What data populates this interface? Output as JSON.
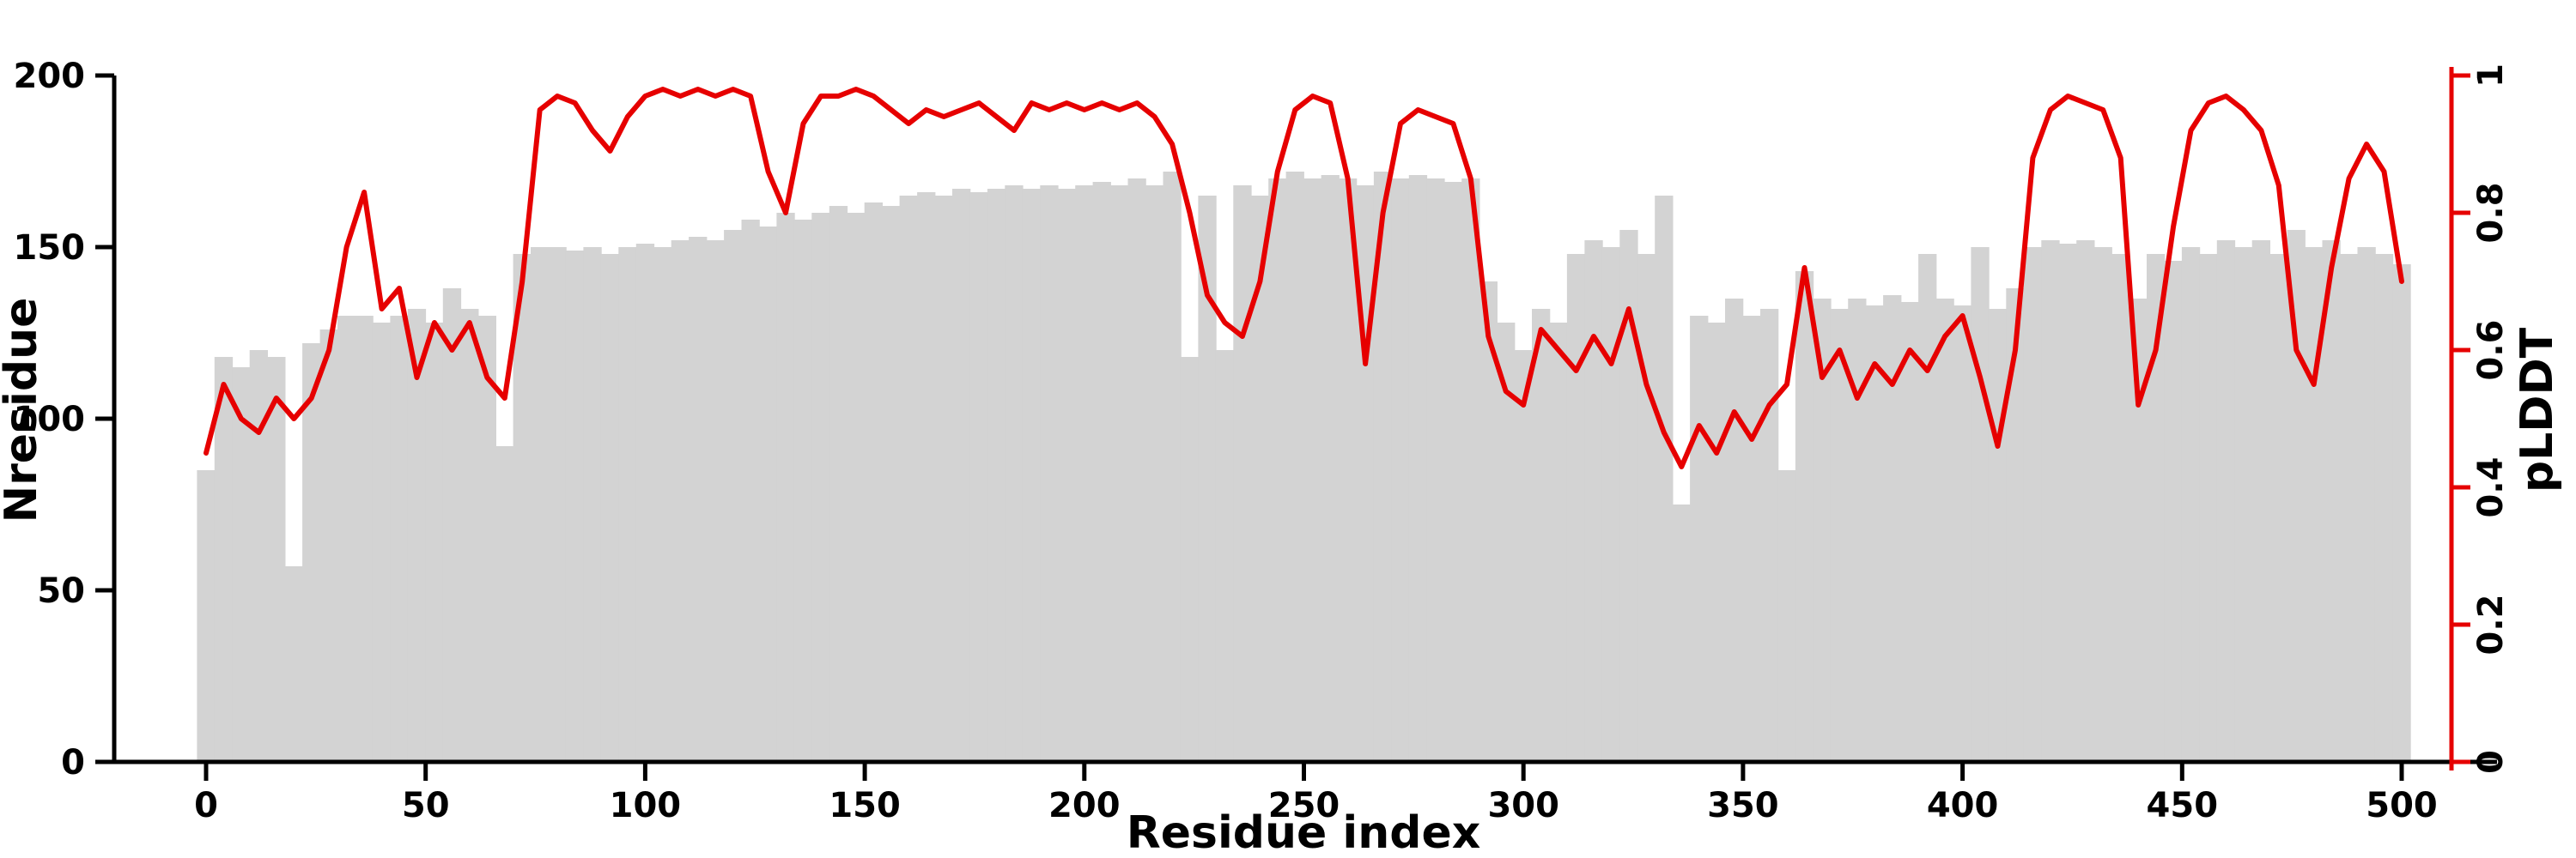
{
  "chart_data": {
    "type": "bar",
    "title": "",
    "xlabel": "Residue index",
    "ylabel_left": "Nresidue",
    "ylabel_right": "pLDDT",
    "xlim": [
      0,
      510
    ],
    "ylim_left": [
      0,
      200
    ],
    "ylim_right": [
      0,
      1
    ],
    "xticks": [
      0,
      50,
      100,
      150,
      200,
      250,
      300,
      350,
      400,
      450,
      500
    ],
    "yticks_left": [
      0,
      50,
      100,
      150,
      200
    ],
    "yticks_right": [
      0,
      0.2,
      0.4,
      0.6,
      0.8,
      1
    ],
    "grid": "off",
    "legend": "none",
    "colors": {
      "bars": "#d3d3d3",
      "line": "#e60000",
      "axis": "#000000",
      "background": "#ffffff"
    },
    "x": [
      0,
      4,
      8,
      12,
      16,
      20,
      24,
      28,
      32,
      36,
      40,
      44,
      48,
      52,
      56,
      60,
      64,
      68,
      72,
      76,
      80,
      84,
      88,
      92,
      96,
      100,
      104,
      108,
      112,
      116,
      120,
      124,
      128,
      132,
      136,
      140,
      144,
      148,
      152,
      156,
      160,
      164,
      168,
      172,
      176,
      180,
      184,
      188,
      192,
      196,
      200,
      204,
      208,
      212,
      216,
      220,
      224,
      228,
      232,
      236,
      240,
      244,
      248,
      252,
      256,
      260,
      264,
      268,
      272,
      276,
      280,
      284,
      288,
      292,
      296,
      300,
      304,
      308,
      312,
      316,
      320,
      324,
      328,
      332,
      336,
      340,
      344,
      348,
      352,
      356,
      360,
      364,
      368,
      372,
      376,
      380,
      384,
      388,
      392,
      396,
      400,
      404,
      408,
      412,
      416,
      420,
      424,
      428,
      432,
      436,
      440,
      444,
      448,
      452,
      456,
      460,
      464,
      468,
      472,
      476,
      480,
      484,
      488,
      492,
      496,
      500
    ],
    "series": [
      {
        "name": "Nresidue",
        "type": "bar",
        "axis": "left",
        "color": "#d3d3d3",
        "values": [
          85,
          118,
          115,
          120,
          118,
          57,
          122,
          126,
          130,
          130,
          128,
          130,
          132,
          128,
          138,
          132,
          130,
          92,
          148,
          150,
          150,
          149,
          150,
          148,
          150,
          151,
          150,
          152,
          153,
          152,
          155,
          158,
          156,
          160,
          158,
          160,
          162,
          160,
          163,
          162,
          165,
          166,
          165,
          167,
          166,
          167,
          168,
          167,
          168,
          167,
          168,
          169,
          168,
          170,
          168,
          172,
          118,
          165,
          120,
          168,
          165,
          170,
          172,
          170,
          171,
          170,
          168,
          172,
          170,
          171,
          170,
          169,
          170,
          140,
          128,
          120,
          132,
          128,
          148,
          152,
          150,
          155,
          148,
          165,
          75,
          130,
          128,
          135,
          130,
          132,
          85,
          143,
          135,
          132,
          135,
          133,
          136,
          134,
          148,
          135,
          133,
          150,
          132,
          138,
          150,
          152,
          151,
          152,
          150,
          148,
          135,
          148,
          146,
          150,
          148,
          152,
          150,
          152,
          148,
          155,
          150,
          152,
          148,
          150,
          148,
          145
        ]
      },
      {
        "name": "pLDDT",
        "type": "line",
        "axis": "right",
        "color": "#e60000",
        "values": [
          0.45,
          0.55,
          0.5,
          0.48,
          0.53,
          0.5,
          0.53,
          0.6,
          0.75,
          0.83,
          0.66,
          0.69,
          0.56,
          0.64,
          0.6,
          0.64,
          0.56,
          0.53,
          0.7,
          0.95,
          0.97,
          0.96,
          0.92,
          0.89,
          0.94,
          0.97,
          0.98,
          0.97,
          0.98,
          0.97,
          0.98,
          0.97,
          0.86,
          0.8,
          0.93,
          0.97,
          0.97,
          0.98,
          0.97,
          0.95,
          0.93,
          0.95,
          0.94,
          0.95,
          0.96,
          0.94,
          0.92,
          0.96,
          0.95,
          0.96,
          0.95,
          0.96,
          0.95,
          0.96,
          0.94,
          0.9,
          0.8,
          0.68,
          0.64,
          0.62,
          0.7,
          0.86,
          0.95,
          0.97,
          0.96,
          0.85,
          0.58,
          0.8,
          0.93,
          0.95,
          0.94,
          0.93,
          0.85,
          0.62,
          0.54,
          0.52,
          0.63,
          0.6,
          0.57,
          0.62,
          0.58,
          0.66,
          0.55,
          0.48,
          0.43,
          0.49,
          0.45,
          0.51,
          0.47,
          0.52,
          0.55,
          0.72,
          0.56,
          0.6,
          0.53,
          0.58,
          0.55,
          0.6,
          0.57,
          0.62,
          0.65,
          0.56,
          0.46,
          0.6,
          0.88,
          0.95,
          0.97,
          0.96,
          0.95,
          0.88,
          0.52,
          0.6,
          0.78,
          0.92,
          0.96,
          0.97,
          0.95,
          0.92,
          0.84,
          0.6,
          0.55,
          0.72,
          0.85,
          0.9,
          0.86,
          0.7
        ]
      }
    ]
  }
}
